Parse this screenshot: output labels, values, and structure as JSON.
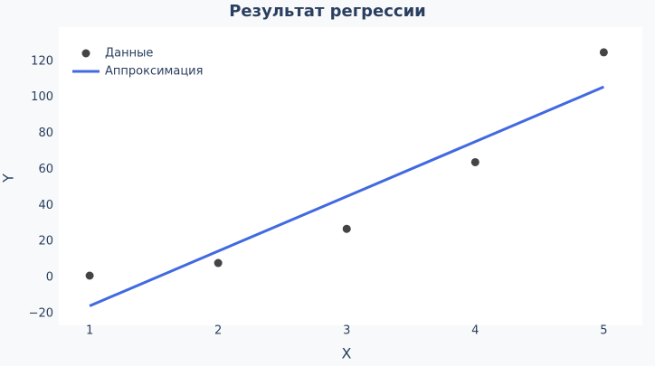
{
  "chart_data": {
    "type": "scatter",
    "title": "Результат регрессии",
    "x_label": "X",
    "y_label": "Y",
    "x": [
      1,
      2,
      3,
      4,
      5
    ],
    "series": [
      {
        "name": "Данные",
        "mode": "markers",
        "color": "#444444",
        "values": [
          1,
          8,
          27,
          64,
          125
        ]
      },
      {
        "name": "Аппроксимация",
        "mode": "lines",
        "color": "#4169e1",
        "values": [
          -15.8,
          14.6,
          45,
          75.4,
          105.8
        ]
      }
    ],
    "xlim": [
      0.76,
      5.3
    ],
    "xticks": [
      1,
      2,
      3,
      4,
      5
    ],
    "ylim": [
      -26.6,
      139
    ],
    "yticks": [
      {
        "value": -20,
        "label": "−20"
      },
      0,
      20,
      40,
      60,
      80,
      100,
      120
    ],
    "grid": false,
    "legend": "top-left"
  }
}
